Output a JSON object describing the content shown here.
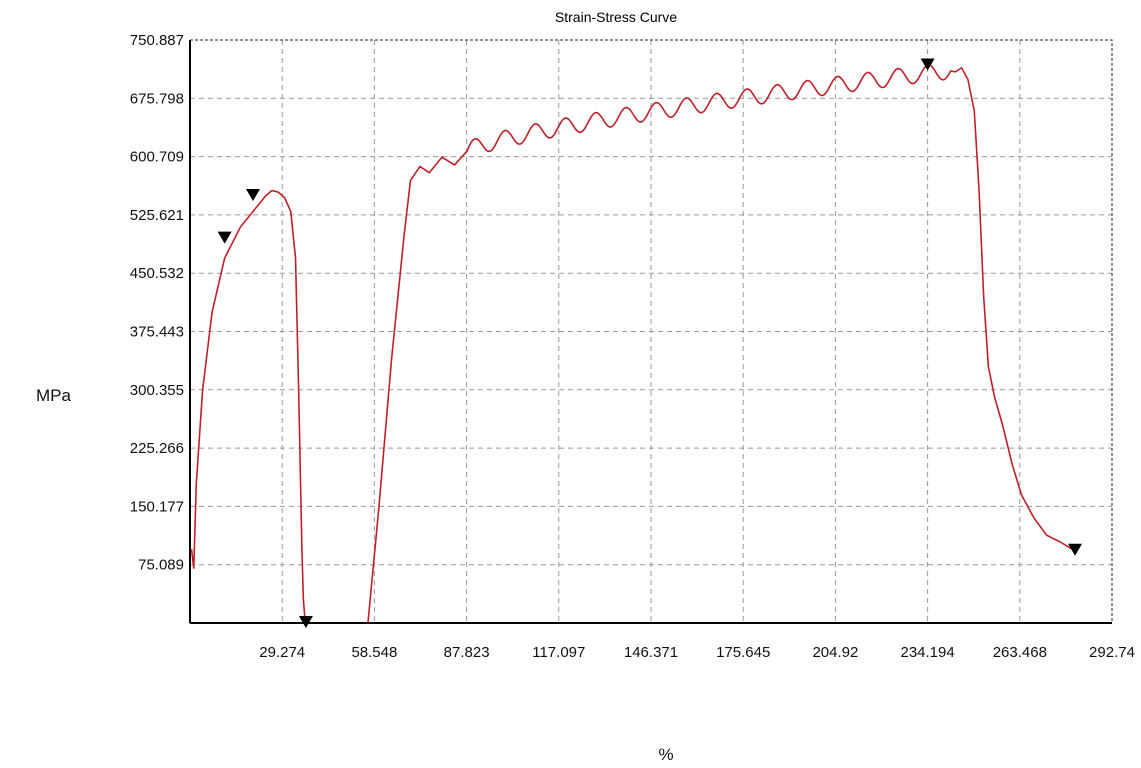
{
  "chart_data": {
    "type": "line",
    "title": "Strain-Stress Curve",
    "xlabel": "%",
    "ylabel": "MPa",
    "xlim": [
      0,
      292.74
    ],
    "ylim": [
      0,
      750.887
    ],
    "grid": true,
    "x_ticks": [
      29.274,
      58.548,
      87.823,
      117.097,
      146.371,
      175.645,
      204.92,
      234.194,
      263.468,
      292.74
    ],
    "x_tick_labels": [
      "29.274",
      "58.548",
      "87.823",
      "117.097",
      "146.371",
      "175.645",
      "204.92",
      "234.194",
      "263.468",
      "292.74"
    ],
    "y_ticks": [
      75.089,
      150.177,
      225.266,
      300.355,
      375.443,
      450.532,
      525.621,
      600.709,
      675.798,
      750.887
    ],
    "y_tick_labels": [
      "75.089",
      "150.177",
      "225.266",
      "300.355",
      "375.443",
      "450.532",
      "525.621",
      "600.709",
      "675.798",
      "750.887"
    ],
    "line_color": "#c0202a",
    "marker_color": "#000000",
    "series": [
      {
        "segments": [
          [
            [
              0.5,
              95
            ],
            [
              1.2,
              70
            ],
            [
              2,
              180
            ],
            [
              4,
              300
            ],
            [
              7,
              400
            ],
            [
              11,
              470
            ],
            [
              16,
              510
            ],
            [
              20,
              530
            ],
            [
              24,
              550
            ],
            [
              26,
              557
            ],
            [
              28,
              555
            ],
            [
              30,
              548
            ],
            [
              32,
              530
            ],
            [
              33.5,
              470
            ],
            [
              34.5,
              300
            ],
            [
              35.5,
              100
            ],
            [
              36,
              30
            ],
            [
              36.6,
              0
            ]
          ],
          [
            [
              56.5,
              0
            ],
            [
              60,
              150
            ],
            [
              64,
              340
            ],
            [
              68,
              500
            ],
            [
              70,
              570
            ],
            [
              73,
              588
            ],
            [
              76,
              580
            ],
            [
              80,
              600
            ],
            [
              84,
              590
            ],
            [
              88,
              608
            ]
          ]
        ],
        "markers": [
          [
            11,
            495
          ],
          [
            20,
            550
          ],
          [
            36.8,
            0
          ],
          [
            234.2,
            718
          ],
          [
            281,
            93
          ]
        ]
      }
    ]
  }
}
